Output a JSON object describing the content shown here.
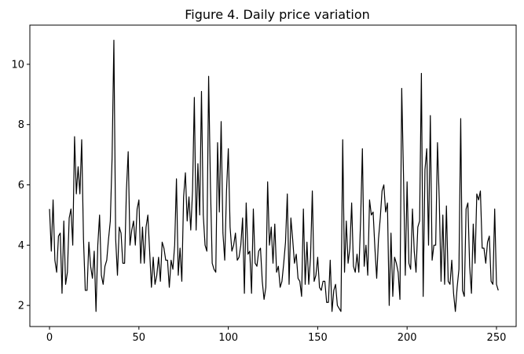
{
  "chart_data": {
    "type": "line",
    "title": "Figure 4. Daily price variation",
    "xlabel": "",
    "ylabel": "",
    "xlim": [
      -11,
      261
    ],
    "ylim": [
      1.3,
      11.3
    ],
    "xticks": [
      0,
      50,
      100,
      150,
      200,
      250
    ],
    "yticks": [
      2,
      4,
      6,
      8,
      10
    ],
    "grid": false,
    "line_color": "#000000",
    "series": [
      {
        "x_start": 0,
        "x_step": 1,
        "values": [
          5.2,
          3.8,
          5.5,
          3.5,
          3.1,
          4.3,
          4.4,
          2.4,
          4.8,
          2.7,
          3.1,
          4.9,
          5.2,
          4.0,
          7.6,
          5.7,
          6.6,
          5.7,
          7.5,
          4.2,
          2.5,
          2.5,
          4.1,
          3.3,
          2.9,
          3.8,
          1.8,
          4.0,
          5.0,
          3.0,
          2.7,
          3.3,
          3.5,
          4.2,
          4.8,
          6.9,
          10.8,
          4.2,
          3.0,
          4.6,
          4.4,
          3.4,
          3.4,
          5.8,
          7.1,
          4.0,
          4.5,
          4.8,
          4.0,
          5.2,
          5.5,
          3.4,
          4.6,
          3.4,
          4.6,
          5.0,
          3.8,
          2.6,
          3.6,
          2.7,
          3.0,
          3.6,
          2.8,
          4.1,
          3.9,
          3.5,
          3.5,
          2.6,
          3.5,
          3.2,
          4.0,
          6.2,
          3.0,
          3.9,
          2.8,
          5.6,
          6.4,
          4.8,
          5.6,
          4.5,
          5.8,
          8.9,
          4.5,
          6.7,
          5.0,
          9.1,
          5.0,
          4.0,
          3.8,
          9.6,
          6.0,
          3.4,
          3.2,
          3.1,
          7.4,
          5.1,
          8.1,
          4.4,
          3.5,
          5.8,
          7.2,
          4.6,
          3.8,
          4.0,
          4.4,
          3.5,
          3.6,
          4.0,
          4.9,
          2.4,
          5.4,
          3.7,
          3.8,
          2.4,
          5.2,
          3.4,
          3.3,
          3.8,
          3.9,
          2.8,
          2.2,
          2.6,
          6.1,
          4.0,
          4.6,
          3.4,
          4.7,
          3.1,
          3.3,
          2.6,
          2.8,
          3.4,
          4.1,
          5.7,
          2.7,
          4.9,
          4.2,
          3.4,
          3.7,
          2.9,
          2.8,
          2.3,
          5.2,
          2.7,
          4.1,
          2.7,
          3.6,
          5.8,
          2.8,
          3.0,
          3.6,
          2.6,
          2.5,
          2.8,
          2.8,
          2.1,
          2.1,
          3.5,
          1.8,
          2.5,
          2.7,
          2.0,
          1.9,
          1.8,
          7.5,
          3.1,
          4.8,
          3.4,
          3.9,
          5.4,
          3.3,
          3.1,
          3.7,
          3.1,
          4.8,
          7.2,
          3.3,
          4.0,
          3.0,
          5.5,
          5.0,
          5.1,
          3.9,
          2.9,
          4.2,
          4.9,
          5.8,
          6.0,
          5.1,
          5.4,
          2.0,
          4.4,
          2.3,
          3.6,
          3.4,
          3.1,
          2.2,
          9.2,
          6.3,
          3.0,
          6.1,
          3.4,
          3.2,
          5.2,
          3.8,
          3.1,
          4.6,
          4.8,
          9.7,
          2.3,
          6.5,
          7.2,
          4.0,
          8.3,
          3.5,
          4.0,
          4.0,
          7.4,
          5.5,
          2.8,
          5.0,
          2.7,
          5.3,
          2.8,
          2.7,
          3.5,
          2.4,
          1.8,
          2.6,
          3.2,
          8.2,
          2.5,
          2.3,
          5.2,
          5.4,
          3.3,
          2.4,
          4.7,
          3.4,
          5.7,
          5.5,
          5.8,
          3.9,
          3.9,
          3.4,
          4.1,
          4.3,
          2.8,
          2.7,
          5.2,
          2.7,
          2.5
        ]
      }
    ]
  }
}
